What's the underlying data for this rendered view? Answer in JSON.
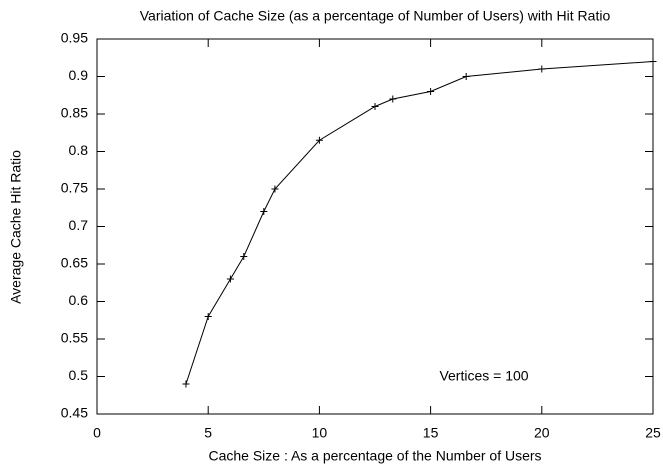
{
  "chart_data": {
    "type": "line",
    "title": "Variation of Cache Size (as a percentage of Number of Users) with Hit Ratio",
    "xlabel": "Cache Size : As a percentage of the Number of Users",
    "ylabel": "Average Cache Hit Ratio",
    "annotation": "Vertices = 100",
    "x": [
      4,
      5,
      6,
      6.6,
      7.5,
      8,
      10,
      12.5,
      13.3,
      15,
      16.6,
      20,
      25
    ],
    "series": [
      {
        "name": null,
        "color": "#000000",
        "values": [
          0.49,
          0.58,
          0.63,
          0.66,
          0.72,
          0.75,
          0.815,
          0.86,
          0.87,
          0.88,
          0.9,
          0.91,
          0.92
        ]
      }
    ],
    "xlim": [
      0,
      25
    ],
    "xticks": [
      0,
      5,
      10,
      15,
      20,
      25
    ],
    "ylim": [
      0.45,
      0.95
    ],
    "yticks": [
      0.45,
      0.5,
      0.55,
      0.6,
      0.65,
      0.7,
      0.75,
      0.8,
      0.85,
      0.9,
      0.95
    ],
    "grid": false,
    "markers": "plus"
  }
}
